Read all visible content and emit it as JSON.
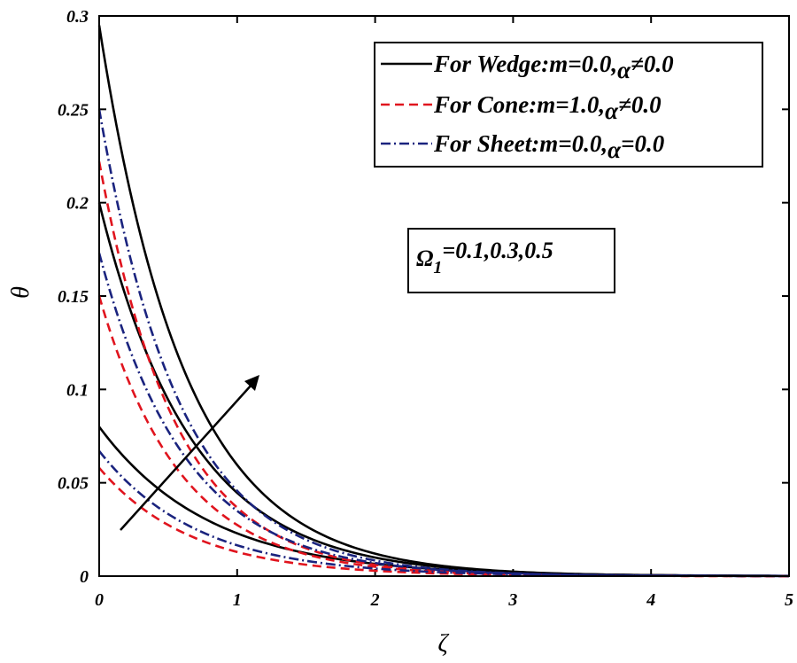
{
  "chart_data": {
    "type": "line",
    "xlabel": "ζ",
    "ylabel": "θ",
    "xlim": [
      0,
      5
    ],
    "ylim": [
      0,
      0.3
    ],
    "xticks": [
      "0",
      "1",
      "2",
      "3",
      "4",
      "5"
    ],
    "yticks": [
      "0",
      "0.05",
      "0.1",
      "0.15",
      "0.2",
      "0.25",
      "0.3"
    ],
    "grid": false,
    "legend_position": "top-right",
    "legend": [
      {
        "label": "For Wedge:m=0.0,",
        "alpha": "α",
        "tail": "≠0.0",
        "style": "solid",
        "color": "#000000"
      },
      {
        "label": "For Cone:m=1.0,",
        "alpha": "α",
        "tail": "≠0.0",
        "style": "dashed",
        "color": "#e0141e"
      },
      {
        "label": "For Sheet:m=0.0,",
        "alpha": "α",
        "tail": "=0.0",
        "style": "dashdot",
        "color": "#1a237e"
      }
    ],
    "annotation": {
      "symbol": "Ω",
      "subscript": "1",
      "text": "=0.1,0.3,0.5"
    },
    "series": [
      {
        "group": "wedge",
        "style": "solid",
        "color": "#000000",
        "params": [
          [
            0.08,
            1.25
          ],
          [
            0.2,
            1.5
          ],
          [
            0.295,
            1.6
          ]
        ]
      },
      {
        "group": "cone",
        "style": "dashed",
        "color": "#e0141e",
        "params": [
          [
            0.058,
            1.5
          ],
          [
            0.15,
            1.7
          ],
          [
            0.222,
            1.8
          ]
        ]
      },
      {
        "group": "sheet",
        "style": "dashdot",
        "color": "#1a237e",
        "params": [
          [
            0.067,
            1.4
          ],
          [
            0.173,
            1.6
          ],
          [
            0.25,
            1.7
          ]
        ]
      }
    ]
  }
}
